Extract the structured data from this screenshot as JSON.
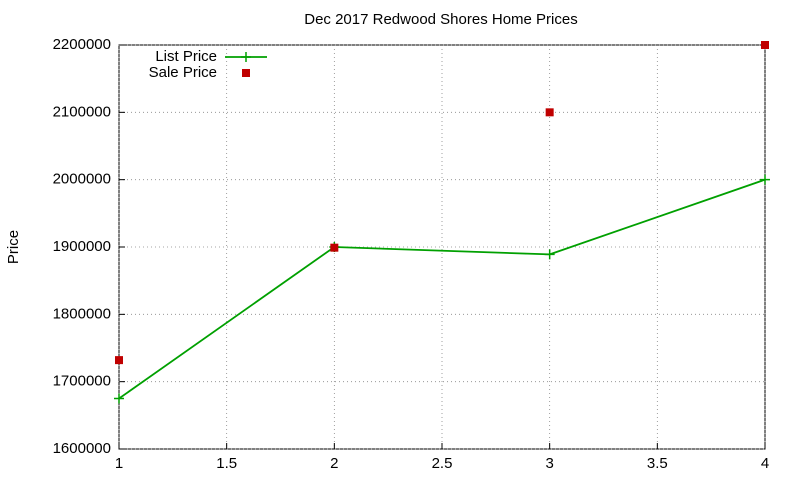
{
  "chart_data": {
    "type": "line",
    "title": "Dec 2017 Redwood Shores Home Prices",
    "y_label": "Price",
    "x": [
      1,
      2,
      3,
      4
    ],
    "series": [
      {
        "name": "List Price",
        "color": "#00a000",
        "mode": "lines+points",
        "values": [
          1675000,
          1900000,
          1889000,
          2000000
        ]
      },
      {
        "name": "Sale Price",
        "color": "#c00000",
        "mode": "points",
        "values": [
          1732000,
          1899000,
          2100000,
          2200000
        ]
      }
    ],
    "xlim": [
      1,
      4
    ],
    "xticks": [
      1,
      1.5,
      2,
      2.5,
      3,
      3.5,
      4
    ],
    "ylim": [
      1600000,
      2200000
    ],
    "yticks": [
      1600000,
      1700000,
      1800000,
      1900000,
      2000000,
      2100000,
      2200000
    ],
    "grid": true,
    "legend": "top-left"
  }
}
